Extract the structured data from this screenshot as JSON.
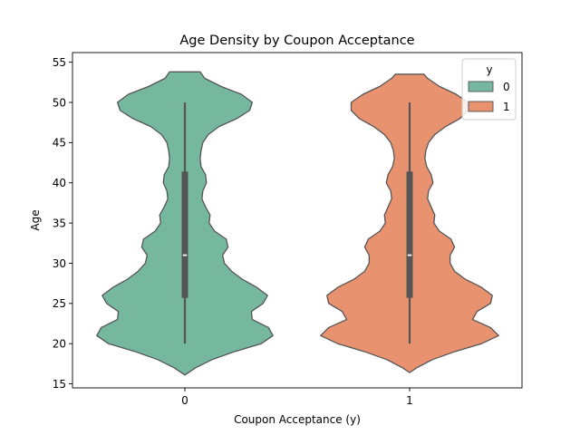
{
  "chart_data": {
    "type": "violin",
    "title": "Age Density by Coupon Acceptance",
    "xlabel": "Coupon Acceptance (y)",
    "ylabel": "Age",
    "ylim": [
      14.5,
      56.2
    ],
    "yticks": [
      15,
      20,
      25,
      30,
      35,
      40,
      45,
      50,
      55
    ],
    "categories": [
      "0",
      "1"
    ],
    "legend": {
      "title": "y",
      "position": "top-right",
      "entries": [
        "0",
        "1"
      ]
    },
    "series": [
      {
        "name": "0",
        "color": "#76b7a0",
        "min": 20,
        "q1": 25.7,
        "median": 31,
        "q3": 41.4,
        "max": 50,
        "density_min": 16.1,
        "density_max": 53.8,
        "profile": [
          [
            16.1,
            0
          ],
          [
            17,
            0.12
          ],
          [
            18,
            0.3
          ],
          [
            19,
            0.55
          ],
          [
            20,
            0.85
          ],
          [
            21,
            0.98
          ],
          [
            22,
            0.93
          ],
          [
            23,
            0.75
          ],
          [
            24,
            0.74
          ],
          [
            25,
            0.87
          ],
          [
            26,
            0.92
          ],
          [
            27,
            0.8
          ],
          [
            28,
            0.64
          ],
          [
            29,
            0.52
          ],
          [
            30,
            0.44
          ],
          [
            31,
            0.42
          ],
          [
            32,
            0.48
          ],
          [
            33,
            0.46
          ],
          [
            34,
            0.33
          ],
          [
            35,
            0.27
          ],
          [
            36,
            0.28
          ],
          [
            37,
            0.23
          ],
          [
            38,
            0.19
          ],
          [
            39,
            0.2
          ],
          [
            40,
            0.24
          ],
          [
            41,
            0.23
          ],
          [
            42,
            0.18
          ],
          [
            43,
            0.17
          ],
          [
            44,
            0.18
          ],
          [
            45,
            0.2
          ],
          [
            46,
            0.26
          ],
          [
            47,
            0.38
          ],
          [
            48,
            0.58
          ],
          [
            49,
            0.72
          ],
          [
            50,
            0.75
          ],
          [
            51,
            0.63
          ],
          [
            52,
            0.4
          ],
          [
            53,
            0.22
          ],
          [
            53.8,
            0.17
          ]
        ]
      },
      {
        "name": "1",
        "color": "#e8926f",
        "min": 20,
        "q1": 25.7,
        "median": 31,
        "q3": 41.4,
        "max": 50,
        "density_min": 16.4,
        "density_max": 53.5,
        "profile": [
          [
            16.4,
            0
          ],
          [
            17,
            0.08
          ],
          [
            18,
            0.25
          ],
          [
            19,
            0.5
          ],
          [
            20,
            0.8
          ],
          [
            21,
            0.99
          ],
          [
            22,
            0.9
          ],
          [
            23,
            0.7
          ],
          [
            24,
            0.75
          ],
          [
            25,
            0.9
          ],
          [
            26,
            0.92
          ],
          [
            27,
            0.8
          ],
          [
            28,
            0.62
          ],
          [
            29,
            0.5
          ],
          [
            30,
            0.45
          ],
          [
            31,
            0.45
          ],
          [
            32,
            0.5
          ],
          [
            33,
            0.46
          ],
          [
            34,
            0.33
          ],
          [
            35,
            0.27
          ],
          [
            36,
            0.28
          ],
          [
            37,
            0.24
          ],
          [
            38,
            0.2
          ],
          [
            39,
            0.21
          ],
          [
            40,
            0.26
          ],
          [
            41,
            0.24
          ],
          [
            42,
            0.19
          ],
          [
            43,
            0.17
          ],
          [
            44,
            0.18
          ],
          [
            45,
            0.21
          ],
          [
            46,
            0.28
          ],
          [
            47,
            0.4
          ],
          [
            48,
            0.56
          ],
          [
            49,
            0.65
          ],
          [
            50,
            0.65
          ],
          [
            51,
            0.52
          ],
          [
            52,
            0.33
          ],
          [
            53,
            0.2
          ],
          [
            53.5,
            0.16
          ]
        ]
      }
    ]
  }
}
